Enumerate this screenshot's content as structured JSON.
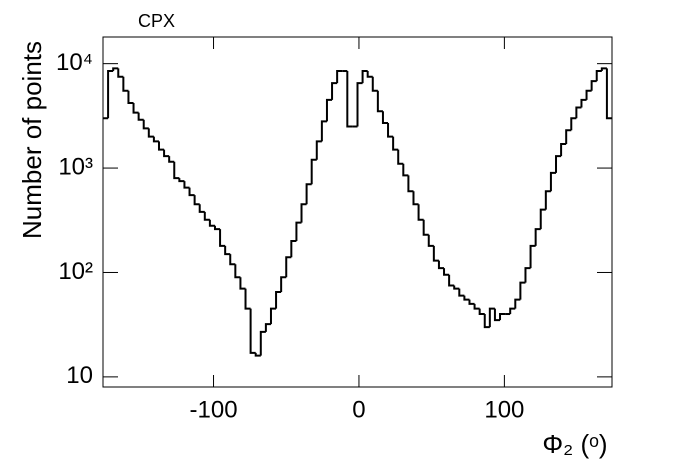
{
  "chart_data": {
    "type": "histogram",
    "title": "CPX",
    "x_label": "Φ₂ (ᵒ)",
    "y_label": "Number of points",
    "xlim": [
      -176,
      174
    ],
    "ylim": [
      8,
      18000
    ],
    "log_y": true,
    "color": "#000000",
    "xticks": [
      -100,
      0,
      100
    ],
    "yticks": [
      10,
      {
        "value": 100,
        "label": "10²"
      },
      {
        "value": 1000,
        "label": "10³"
      },
      {
        "value": 10000,
        "label": "10⁴"
      }
    ],
    "bins": [
      -176,
      -172.5,
      -169,
      -165.5,
      -162,
      -158.5,
      -155,
      -151.5,
      -148,
      -144.5,
      -141,
      -137.5,
      -134,
      -130.5,
      -127,
      -123.5,
      -120,
      -116.5,
      -113,
      -109.5,
      -106,
      -102.5,
      -99,
      -95.5,
      -92,
      -88.5,
      -85,
      -81.5,
      -78,
      -74.5,
      -71,
      -67.5,
      -64,
      -60.5,
      -57,
      -53.5,
      -50,
      -46.5,
      -43,
      -39.5,
      -36,
      -32.5,
      -29,
      -25.5,
      -22,
      -18.5,
      -15,
      -11.5,
      -8,
      -4.5,
      -1,
      2.5,
      6,
      9.5,
      13,
      16.5,
      20,
      23.5,
      27,
      30.5,
      34,
      37.5,
      41,
      44.5,
      48,
      51.5,
      55,
      58.5,
      62,
      65.5,
      69,
      72.5,
      76,
      79.5,
      83,
      86.5,
      90,
      93.5,
      97,
      100.5,
      104,
      107.5,
      111,
      114.5,
      118,
      121.5,
      125,
      128.5,
      132,
      135.5,
      139,
      142.5,
      146,
      149.5,
      153,
      156.5,
      160,
      163.5,
      167,
      170.5,
      174
    ],
    "values": [
      3000,
      8500,
      9000,
      7500,
      5500,
      4200,
      3400,
      2900,
      2400,
      2000,
      1800,
      1500,
      1300,
      1150,
      800,
      750,
      650,
      550,
      450,
      380,
      320,
      280,
      260,
      180,
      150,
      120,
      90,
      70,
      45,
      17,
      16,
      27,
      32,
      45,
      65,
      90,
      140,
      200,
      300,
      450,
      700,
      1200,
      1800,
      2800,
      4500,
      6500,
      8500,
      8500,
      2500,
      2500,
      6500,
      8500,
      7500,
      5500,
      3500,
      2700,
      2000,
      1500,
      1100,
      850,
      600,
      450,
      320,
      230,
      180,
      130,
      110,
      95,
      75,
      70,
      60,
      55,
      50,
      45,
      40,
      30,
      45,
      35,
      40,
      40,
      45,
      55,
      80,
      110,
      180,
      260,
      400,
      600,
      900,
      1300,
      1700,
      2300,
      3000,
      3800,
      4500,
      5500,
      6800,
      8500,
      9000,
      3000
    ]
  }
}
